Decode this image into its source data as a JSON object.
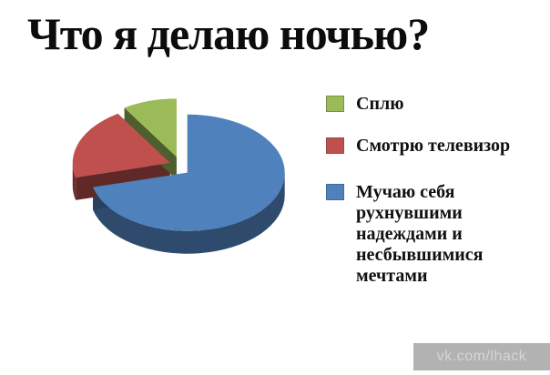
{
  "title": "Что я делаю ночью?",
  "watermark": "vk.com/lhack",
  "chart_data": {
    "type": "pie",
    "title": "Что я делаю ночью?",
    "style": "3d-exploded-pie, no data labels, white background",
    "legend_position": "right",
    "slices": [
      {
        "label": "Сплю",
        "value_pct": 9,
        "color": "#9bbb59"
      },
      {
        "label": "Смотрю телевизор",
        "value_pct": 20,
        "color": "#c0504d"
      },
      {
        "label": "Мучаю себя рухнувшими надеждами и несбывшимися мечтами",
        "value_pct": 71,
        "color": "#4f81bd"
      }
    ],
    "layout_note": "largest slice starts at 12 o'clock going clockwise; smaller slices fill the upper-left; all slices slightly exploded"
  }
}
